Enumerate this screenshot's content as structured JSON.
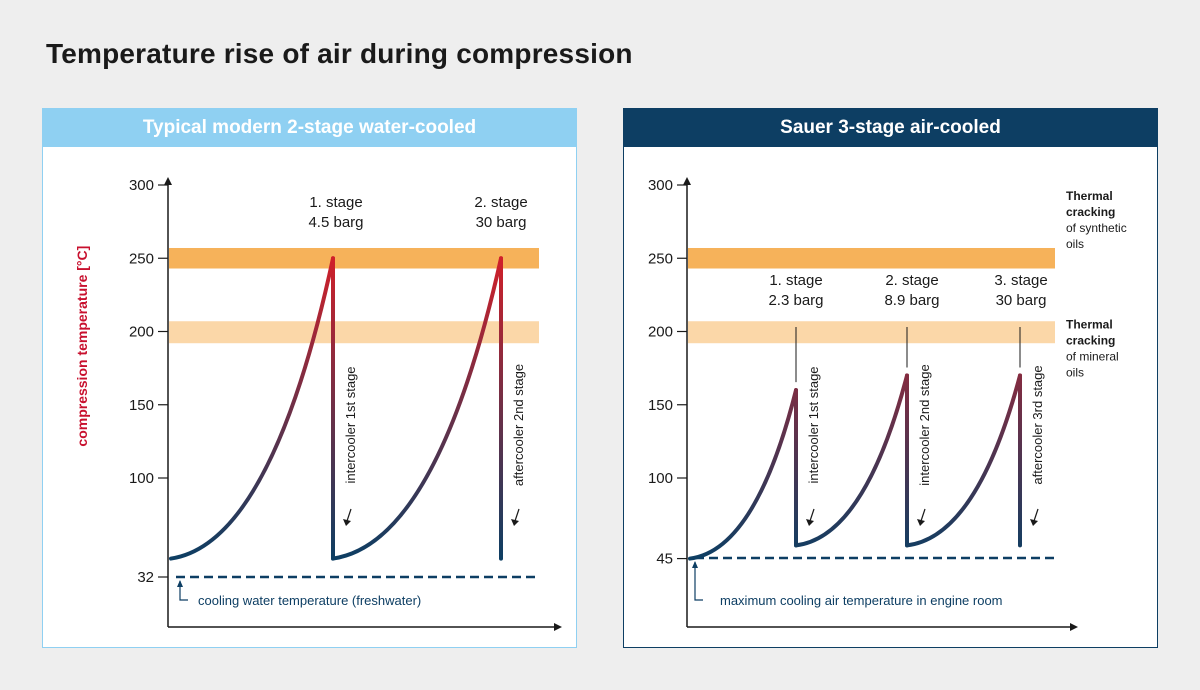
{
  "title": "Temperature rise of air during compression",
  "colors": {
    "hot": "#d0202a",
    "cold": "#0d3e63",
    "band_dark": "#f6b25a",
    "band_light": "#fbd7a8",
    "header_light": "#8fd0f2",
    "header_dark": "#0d3e63",
    "ylabel": "#c8102e"
  },
  "chart_data": [
    {
      "type": "line",
      "title": "Typical modern 2-stage water-cooled",
      "ylabel": "compression temperature [°C]",
      "xlabel": "",
      "y_ticks": [
        "300",
        "250",
        "200",
        "150",
        "100",
        "32"
      ],
      "y_tick_values": [
        300,
        250,
        200,
        150,
        100,
        32
      ],
      "bands": [
        {
          "from": 243,
          "to": 257,
          "style": "dark"
        },
        {
          "from": 192,
          "to": 207,
          "style": "light"
        }
      ],
      "stages": [
        {
          "label": "1. stage",
          "pressure": "4.5 barg",
          "start": 45,
          "peak": 250,
          "drop_to": 45
        },
        {
          "label": "2. stage",
          "pressure": "30 barg",
          "start": 45,
          "peak": 250,
          "drop_to": 45
        }
      ],
      "coolers": [
        "intercooler 1st stage",
        "aftercooler 2nd stage"
      ],
      "reference_line": {
        "value": 32,
        "label": "cooling water temperature (freshwater)"
      }
    },
    {
      "type": "line",
      "title": "Sauer 3-stage air-cooled",
      "ylabel": "",
      "xlabel": "",
      "y_ticks": [
        "300",
        "250",
        "200",
        "150",
        "100",
        "45"
      ],
      "y_tick_values": [
        300,
        250,
        200,
        150,
        100,
        45
      ],
      "bands": [
        {
          "from": 243,
          "to": 257,
          "style": "dark"
        },
        {
          "from": 192,
          "to": 207,
          "style": "light"
        }
      ],
      "band_labels": [
        {
          "bold": [
            "Thermal",
            "cracking"
          ],
          "normal": [
            "of synthetic",
            "oils"
          ]
        },
        {
          "bold": [
            "Thermal",
            "cracking"
          ],
          "normal": [
            "of mineral",
            "oils"
          ]
        }
      ],
      "stages": [
        {
          "label": "1. stage",
          "pressure": "2.3 barg",
          "start": 45,
          "peak": 160,
          "drop_to": 54
        },
        {
          "label": "2. stage",
          "pressure": "8.9 barg",
          "start": 54,
          "peak": 170,
          "drop_to": 54
        },
        {
          "label": "3. stage",
          "pressure": "30 barg",
          "start": 54,
          "peak": 170,
          "drop_to": 54
        }
      ],
      "coolers": [
        "intercooler 1st stage",
        "intercooler 2nd stage",
        "aftercooler 3rd stage"
      ],
      "reference_line": {
        "value": 45,
        "label": "maximum cooling air temperature in engine room"
      }
    }
  ]
}
